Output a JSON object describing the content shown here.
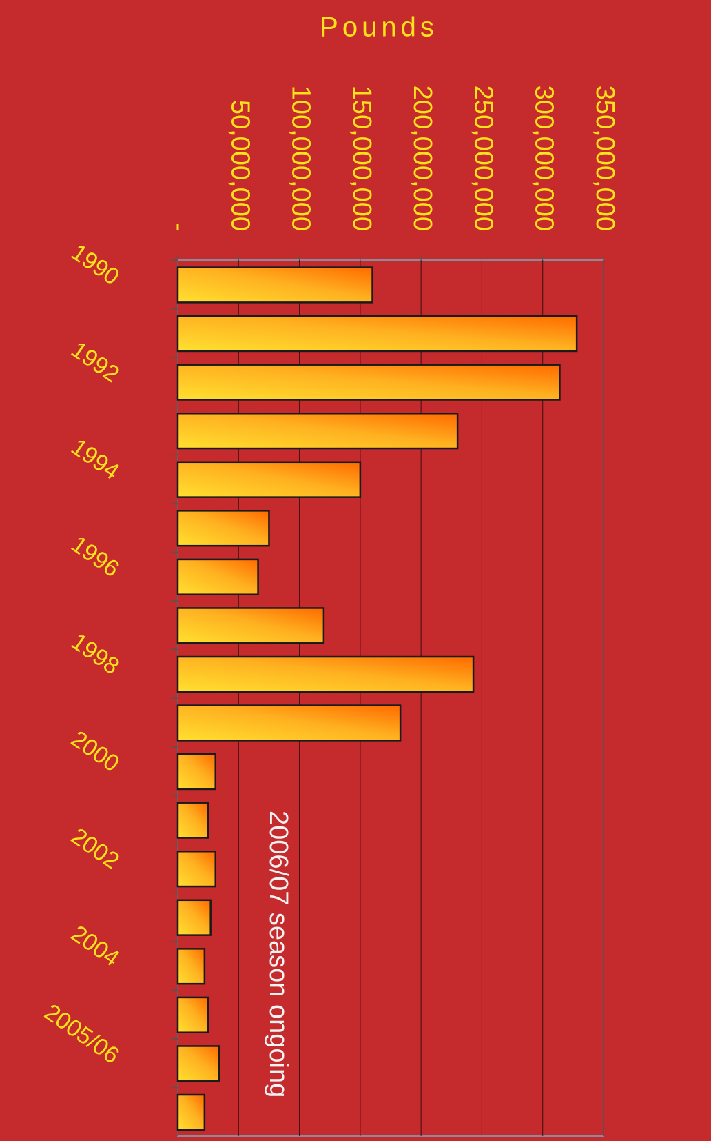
{
  "chart_data": {
    "type": "bar",
    "orientation": "horizontal",
    "title": "Pounds",
    "annotation": "2006/07 season ongoing",
    "categories": [
      "1990",
      null,
      "1992",
      null,
      "1994",
      null,
      "1996",
      null,
      "1998",
      null,
      "2000",
      null,
      "2002",
      null,
      "2004",
      null,
      "2005/06",
      null
    ],
    "values": [
      160000000,
      328000000,
      314000000,
      230000000,
      150000000,
      75000000,
      66000000,
      120000000,
      243000000,
      183000000,
      31000000,
      25000000,
      31000000,
      27000000,
      22000000,
      25000000,
      34000000,
      22000000
    ],
    "xlim": [
      0,
      350000000
    ],
    "xticks": [
      {
        "value": 0,
        "label": "-"
      },
      {
        "value": 50000000,
        "label": "50,000,000"
      },
      {
        "value": 100000000,
        "label": "100,000,000"
      },
      {
        "value": 150000000,
        "label": "150,000,000"
      },
      {
        "value": 200000000,
        "label": "200,000,000"
      },
      {
        "value": 250000000,
        "label": "250,000,000"
      },
      {
        "value": 300000000,
        "label": "300,000,000"
      },
      {
        "value": 350000000,
        "label": "350,000,000"
      }
    ],
    "grid": true
  }
}
